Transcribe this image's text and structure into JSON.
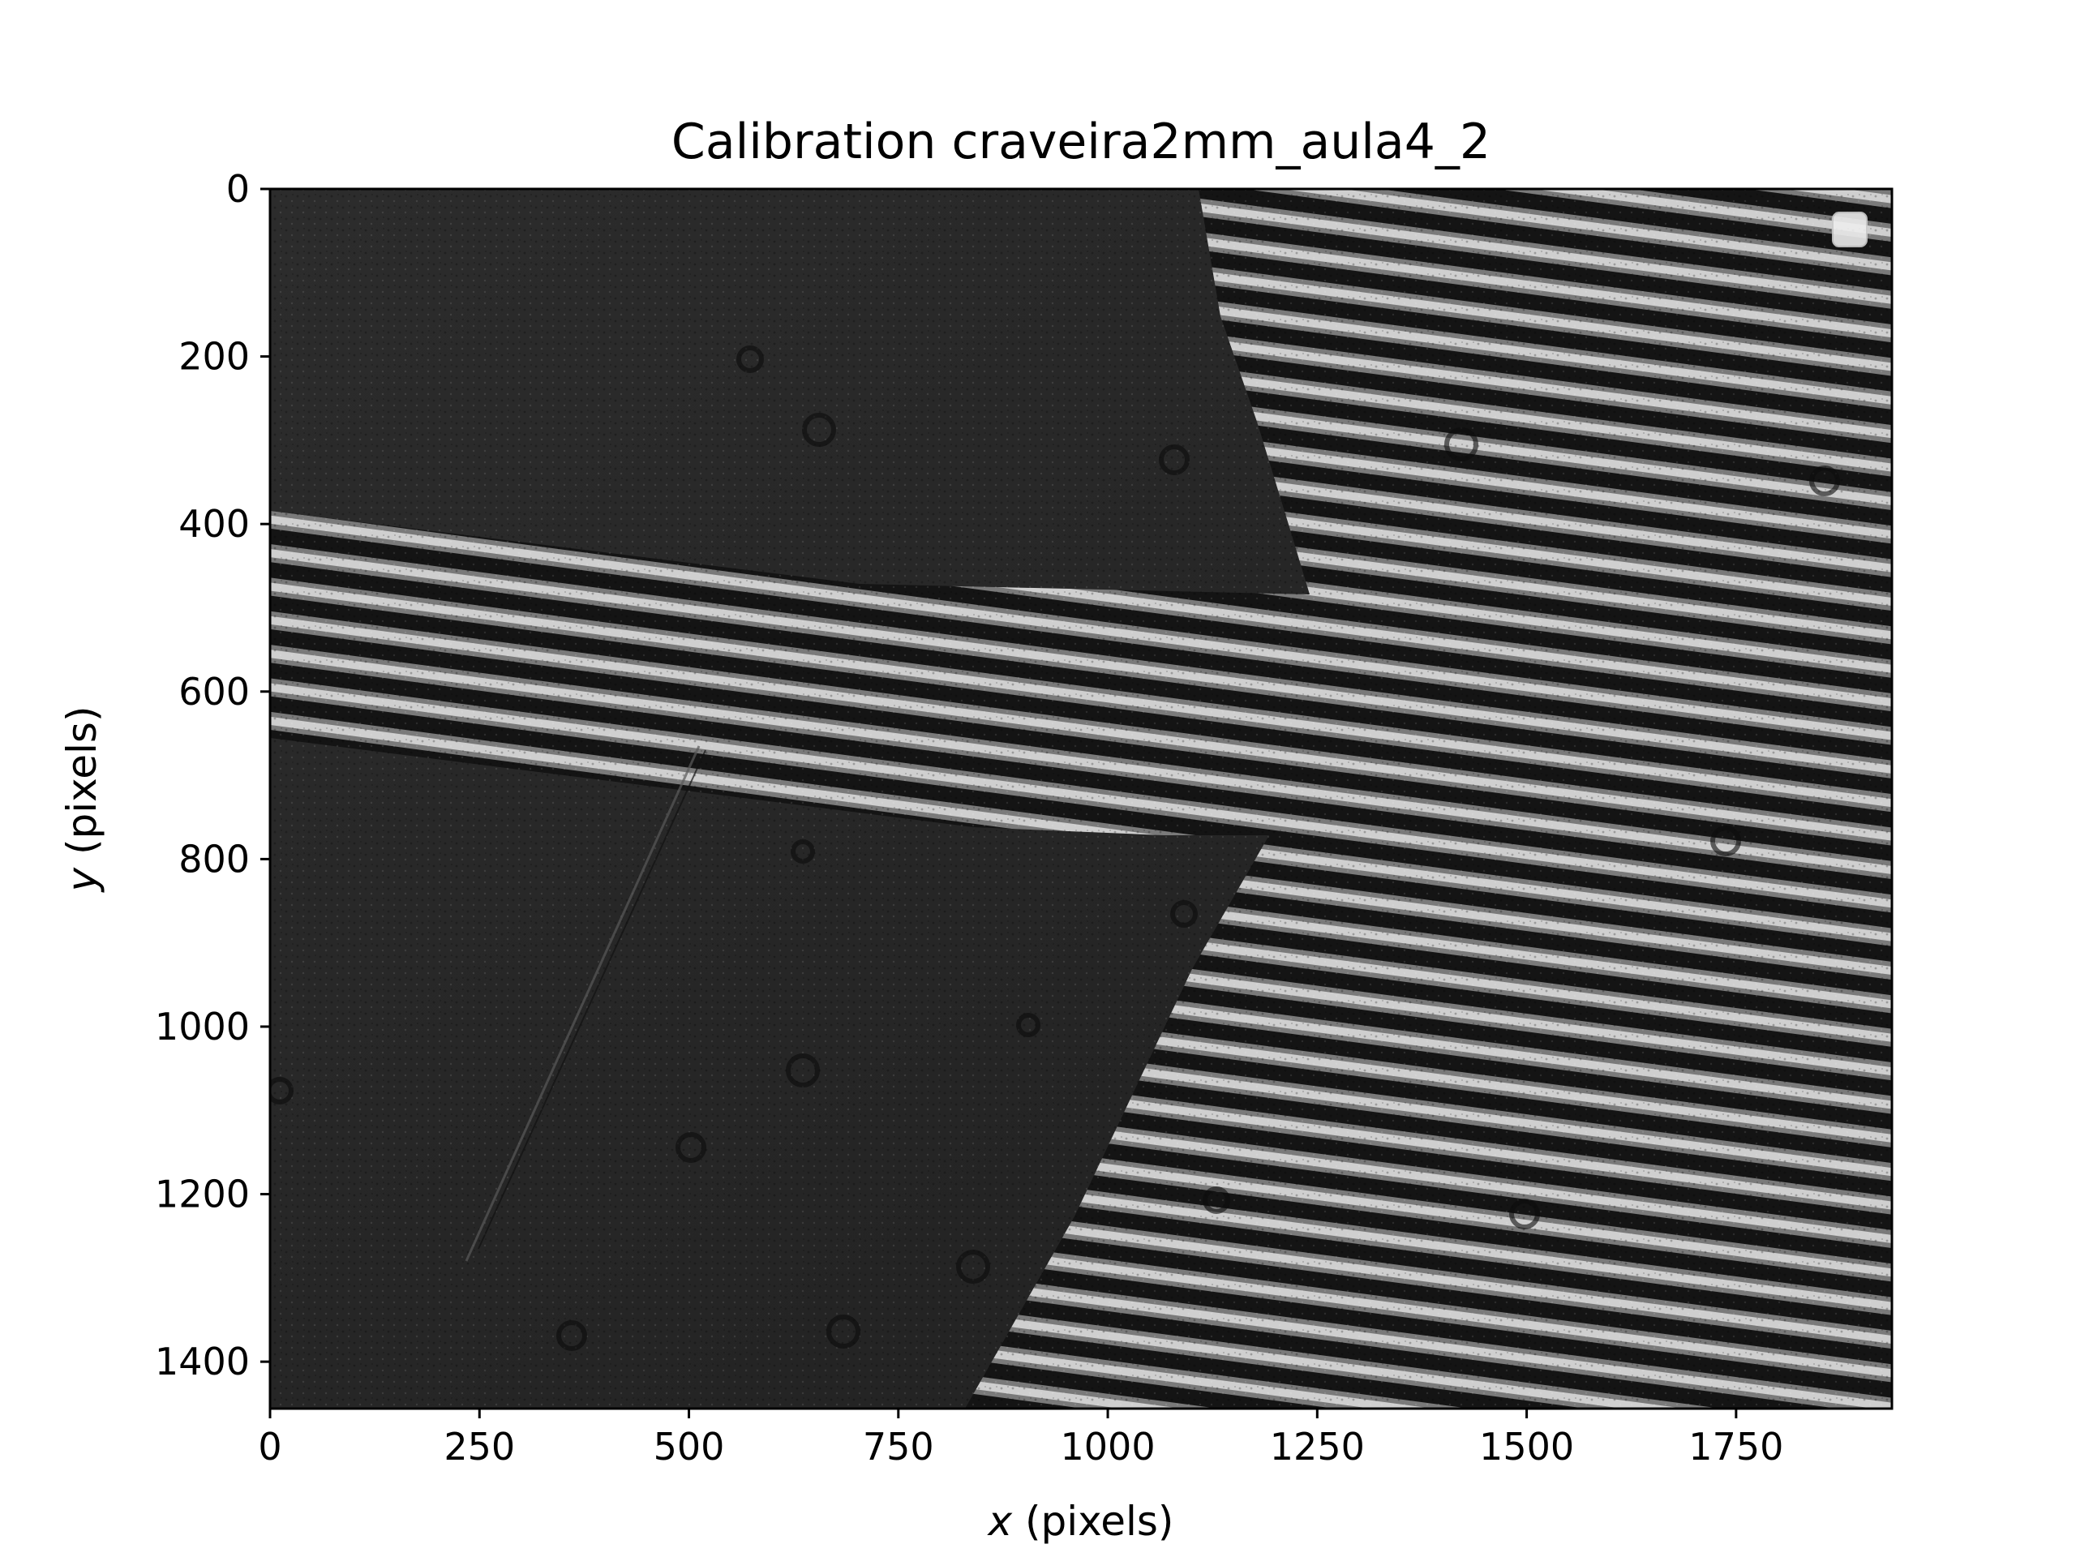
{
  "chart_data": {
    "type": "image",
    "title": "Calibration craveira2mm_aula4_2",
    "xlabel_var": "x",
    "xlabel_unit": " (pixels)",
    "ylabel_var": "y",
    "ylabel_unit": " (pixels)",
    "xlim": [
      0,
      1936
    ],
    "ylim": [
      1456,
      0
    ],
    "x_ticks": [
      0,
      250,
      500,
      750,
      1000,
      1250,
      1500,
      1750
    ],
    "y_ticks": [
      0,
      200,
      400,
      600,
      800,
      1000,
      1200,
      1400
    ],
    "legend": {
      "placement": "upper-right",
      "entries": []
    },
    "image_content": {
      "description_kind": "grayscale interferogram",
      "fringe_color_light": "#d8d8d8",
      "fringe_color_dark": "#111111",
      "background_color": "#262626"
    }
  }
}
